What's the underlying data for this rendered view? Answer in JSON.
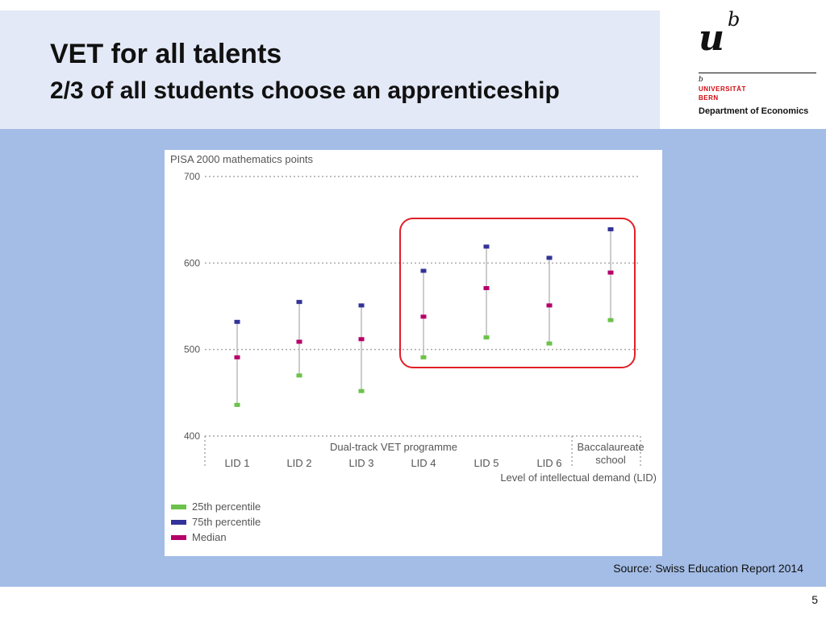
{
  "slide": {
    "title": "VET for all talents",
    "subtitle": "2/3 of all students choose an apprenticeship",
    "source": "Source: Swiss Education Report 2014",
    "page_number": "5"
  },
  "logo": {
    "letters": "u b",
    "university": "UNIVERSITÄT",
    "city": "BERN",
    "department": "Department of Economics"
  },
  "colors": {
    "header_band": "#e3e9f6",
    "body_band": "#a3bde6",
    "p25": "#6cc24a",
    "p75": "#333399",
    "median": "#b5006a",
    "highlight": "#e01f26"
  },
  "chart_data": {
    "type": "range",
    "title": "PISA 2000 mathematics points",
    "ylim": [
      400,
      700
    ],
    "yticks": [
      400,
      500,
      600,
      700
    ],
    "grid": true,
    "categories": [
      "LID 1",
      "LID 2",
      "LID 3",
      "LID 4",
      "LID 5",
      "LID 6",
      "Baccalaureate school"
    ],
    "group_label": "Dual-track VET programme",
    "xlabel": "Level of intellectual demand (LID)",
    "series": [
      {
        "name": "25th percentile",
        "color": "#6cc24a",
        "values": [
          436,
          470,
          452,
          491,
          514,
          507,
          534
        ]
      },
      {
        "name": "75th percentile",
        "color": "#333399",
        "values": [
          532,
          555,
          551,
          591,
          619,
          606,
          639
        ]
      },
      {
        "name": "Median",
        "color": "#b5006a",
        "values": [
          491,
          509,
          512,
          538,
          571,
          551,
          589
        ]
      }
    ],
    "highlight": {
      "from": "LID 4",
      "to": "Baccalaureate school"
    }
  }
}
